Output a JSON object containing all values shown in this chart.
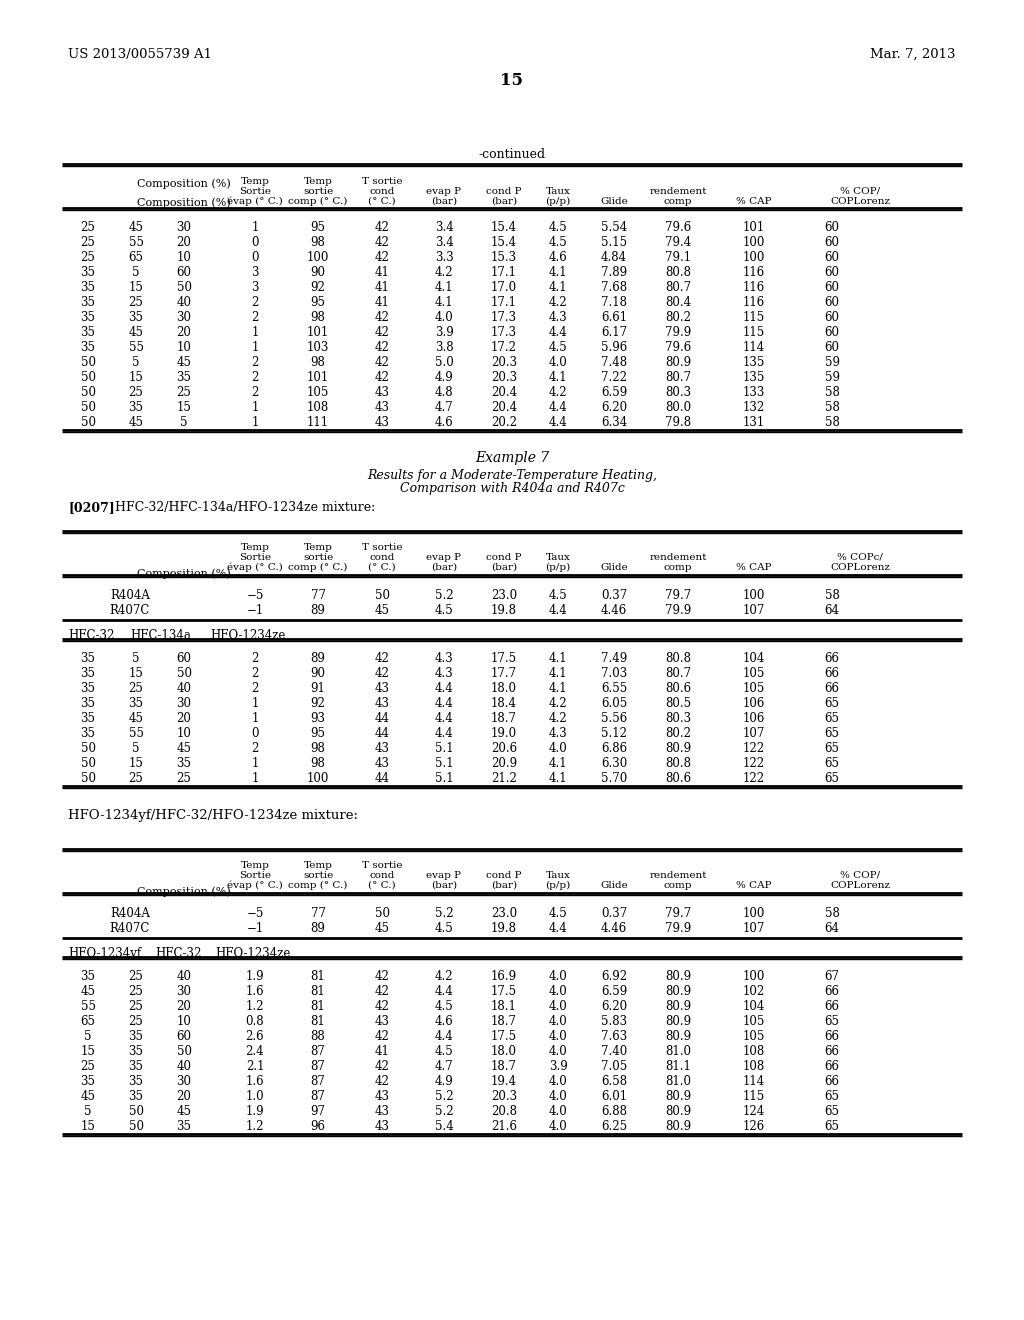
{
  "header_left": "US 2013/0055739 A1",
  "header_right": "Mar. 7, 2013",
  "page_number": "15",
  "continued_label": "-continued",
  "table1_data": [
    [
      "25",
      "45",
      "30",
      "1",
      "95",
      "42",
      "3.4",
      "15.4",
      "4.5",
      "5.54",
      "79.6",
      "101",
      "60"
    ],
    [
      "25",
      "55",
      "20",
      "0",
      "98",
      "42",
      "3.4",
      "15.4",
      "4.5",
      "5.15",
      "79.4",
      "100",
      "60"
    ],
    [
      "25",
      "65",
      "10",
      "0",
      "100",
      "42",
      "3.3",
      "15.3",
      "4.6",
      "4.84",
      "79.1",
      "100",
      "60"
    ],
    [
      "35",
      "5",
      "60",
      "3",
      "90",
      "41",
      "4.2",
      "17.1",
      "4.1",
      "7.89",
      "80.8",
      "116",
      "60"
    ],
    [
      "35",
      "15",
      "50",
      "3",
      "92",
      "41",
      "4.1",
      "17.0",
      "4.1",
      "7.68",
      "80.7",
      "116",
      "60"
    ],
    [
      "35",
      "25",
      "40",
      "2",
      "95",
      "41",
      "4.1",
      "17.1",
      "4.2",
      "7.18",
      "80.4",
      "116",
      "60"
    ],
    [
      "35",
      "35",
      "30",
      "2",
      "98",
      "42",
      "4.0",
      "17.3",
      "4.3",
      "6.61",
      "80.2",
      "115",
      "60"
    ],
    [
      "35",
      "45",
      "20",
      "1",
      "101",
      "42",
      "3.9",
      "17.3",
      "4.4",
      "6.17",
      "79.9",
      "115",
      "60"
    ],
    [
      "35",
      "55",
      "10",
      "1",
      "103",
      "42",
      "3.8",
      "17.2",
      "4.5",
      "5.96",
      "79.6",
      "114",
      "60"
    ],
    [
      "50",
      "5",
      "45",
      "2",
      "98",
      "42",
      "5.0",
      "20.3",
      "4.0",
      "7.48",
      "80.9",
      "135",
      "59"
    ],
    [
      "50",
      "15",
      "35",
      "2",
      "101",
      "42",
      "4.9",
      "20.3",
      "4.1",
      "7.22",
      "80.7",
      "135",
      "59"
    ],
    [
      "50",
      "25",
      "25",
      "2",
      "105",
      "43",
      "4.8",
      "20.4",
      "4.2",
      "6.59",
      "80.3",
      "133",
      "58"
    ],
    [
      "50",
      "35",
      "15",
      "1",
      "108",
      "43",
      "4.7",
      "20.4",
      "4.4",
      "6.20",
      "80.0",
      "132",
      "58"
    ],
    [
      "50",
      "45",
      "5",
      "1",
      "111",
      "43",
      "4.6",
      "20.2",
      "4.4",
      "6.34",
      "79.8",
      "131",
      "58"
    ]
  ],
  "example7_title": "Example 7",
  "example7_subtitle1": "Results for a Moderate-Temperature Heating,",
  "example7_subtitle2": "Comparison with R404a and R407c",
  "example7_label": "[0207]",
  "example7_mixture": "HFC-32/HFC-134a/HFO-1234ze mixture:",
  "table2_ref_rows": [
    [
      "R404A",
      "",
      "",
      "−5",
      "77",
      "50",
      "5.2",
      "23.0",
      "4.5",
      "0.37",
      "79.7",
      "100",
      "58"
    ],
    [
      "R407C",
      "",
      "",
      "−1",
      "89",
      "45",
      "4.5",
      "19.8",
      "4.4",
      "4.46",
      "79.9",
      "107",
      "64"
    ]
  ],
  "table2_data": [
    [
      "35",
      "5",
      "60",
      "2",
      "89",
      "42",
      "4.3",
      "17.5",
      "4.1",
      "7.49",
      "80.8",
      "104",
      "66"
    ],
    [
      "35",
      "15",
      "50",
      "2",
      "90",
      "42",
      "4.3",
      "17.7",
      "4.1",
      "7.03",
      "80.7",
      "105",
      "66"
    ],
    [
      "35",
      "25",
      "40",
      "2",
      "91",
      "43",
      "4.4",
      "18.0",
      "4.1",
      "6.55",
      "80.6",
      "105",
      "66"
    ],
    [
      "35",
      "35",
      "30",
      "1",
      "92",
      "43",
      "4.4",
      "18.4",
      "4.2",
      "6.05",
      "80.5",
      "106",
      "65"
    ],
    [
      "35",
      "45",
      "20",
      "1",
      "93",
      "44",
      "4.4",
      "18.7",
      "4.2",
      "5.56",
      "80.3",
      "106",
      "65"
    ],
    [
      "35",
      "55",
      "10",
      "0",
      "95",
      "44",
      "4.4",
      "19.0",
      "4.3",
      "5.12",
      "80.2",
      "107",
      "65"
    ],
    [
      "50",
      "5",
      "45",
      "2",
      "98",
      "43",
      "5.1",
      "20.6",
      "4.0",
      "6.86",
      "80.9",
      "122",
      "65"
    ],
    [
      "50",
      "15",
      "35",
      "1",
      "98",
      "43",
      "5.1",
      "20.9",
      "4.1",
      "6.30",
      "80.8",
      "122",
      "65"
    ],
    [
      "50",
      "25",
      "25",
      "1",
      "100",
      "44",
      "5.1",
      "21.2",
      "4.1",
      "5.70",
      "80.6",
      "122",
      "65"
    ]
  ],
  "mixture2_label": "HFO-1234yf/HFC-32/HFO-1234ze mixture:",
  "table3_ref_rows": [
    [
      "R404A",
      "",
      "",
      "−5",
      "77",
      "50",
      "5.2",
      "23.0",
      "4.5",
      "0.37",
      "79.7",
      "100",
      "58"
    ],
    [
      "R407C",
      "",
      "",
      "−1",
      "89",
      "45",
      "4.5",
      "19.8",
      "4.4",
      "4.46",
      "79.9",
      "107",
      "64"
    ]
  ],
  "table3_data": [
    [
      "35",
      "25",
      "40",
      "1.9",
      "81",
      "42",
      "4.2",
      "16.9",
      "4.0",
      "6.92",
      "80.9",
      "100",
      "67"
    ],
    [
      "45",
      "25",
      "30",
      "1.6",
      "81",
      "42",
      "4.4",
      "17.5",
      "4.0",
      "6.59",
      "80.9",
      "102",
      "66"
    ],
    [
      "55",
      "25",
      "20",
      "1.2",
      "81",
      "42",
      "4.5",
      "18.1",
      "4.0",
      "6.20",
      "80.9",
      "104",
      "66"
    ],
    [
      "65",
      "25",
      "10",
      "0.8",
      "81",
      "43",
      "4.6",
      "18.7",
      "4.0",
      "5.83",
      "80.9",
      "105",
      "65"
    ],
    [
      "5",
      "35",
      "60",
      "2.6",
      "88",
      "42",
      "4.4",
      "17.5",
      "4.0",
      "7.63",
      "80.9",
      "105",
      "66"
    ],
    [
      "15",
      "35",
      "50",
      "2.4",
      "87",
      "41",
      "4.5",
      "18.0",
      "4.0",
      "7.40",
      "81.0",
      "108",
      "66"
    ],
    [
      "25",
      "35",
      "40",
      "2.1",
      "87",
      "42",
      "4.7",
      "18.7",
      "3.9",
      "7.05",
      "81.1",
      "108",
      "66"
    ],
    [
      "35",
      "35",
      "30",
      "1.6",
      "87",
      "42",
      "4.9",
      "19.4",
      "4.0",
      "6.58",
      "81.0",
      "114",
      "66"
    ],
    [
      "45",
      "35",
      "20",
      "1.0",
      "87",
      "43",
      "5.2",
      "20.3",
      "4.0",
      "6.01",
      "80.9",
      "115",
      "65"
    ],
    [
      "5",
      "50",
      "45",
      "1.9",
      "97",
      "43",
      "5.2",
      "20.8",
      "4.0",
      "6.88",
      "80.9",
      "124",
      "65"
    ],
    [
      "15",
      "50",
      "35",
      "1.2",
      "96",
      "43",
      "5.4",
      "21.6",
      "4.0",
      "6.25",
      "80.9",
      "126",
      "65"
    ]
  ]
}
